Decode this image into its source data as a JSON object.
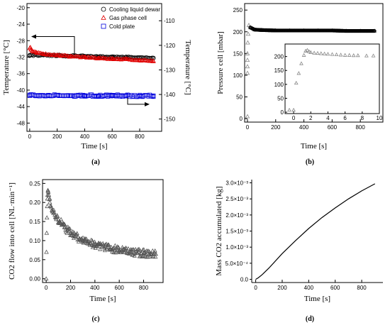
{
  "chart_data": [
    {
      "panel": "a",
      "label": "(a)",
      "type": "scatter",
      "xlabel": "Time [s]",
      "ylabel": "Temperature [°C]",
      "ylabel_right": "Temperature [°C]",
      "xlim": [
        -20,
        960
      ],
      "ylim": [
        -50,
        -19
      ],
      "ylim_right": [
        -155,
        -103
      ],
      "xticks": [
        "0",
        "200",
        "400",
        "600",
        "800"
      ],
      "xtick_values": [
        0,
        200,
        400,
        600,
        800
      ],
      "yticks": [
        "-48",
        "-44",
        "-40",
        "-36",
        "-32",
        "-28",
        "-24",
        "-20"
      ],
      "ytick_values": [
        -48,
        -44,
        -40,
        -36,
        -32,
        -28,
        -24,
        -20
      ],
      "yticks_right": [
        "-150",
        "-140",
        "-130",
        "-120",
        "-110"
      ],
      "ytick_right_values": [
        -150,
        -140,
        -130,
        -120,
        -110
      ],
      "legend": [
        "Cooling liquid dewar",
        "Gas phase cell",
        "Cold plate"
      ],
      "series": [
        {
          "name": "Cooling liquid dewar",
          "axis": "left",
          "marker": "circle",
          "color": "#000000",
          "x": [
            0,
            100,
            200,
            300,
            400,
            500,
            600,
            700,
            800,
            900
          ],
          "y": [
            -31.5,
            -31.5,
            -31.6,
            -31.7,
            -31.8,
            -31.9,
            -32.0,
            -32.0,
            -32.1,
            -32.2
          ]
        },
        {
          "name": "Gas phase cell",
          "axis": "left",
          "marker": "triangle",
          "color": "#e00000",
          "x": [
            0,
            5,
            10,
            20,
            50,
            100,
            200,
            300,
            400,
            500,
            600,
            700,
            800,
            900
          ],
          "y": [
            -29.8,
            -29.6,
            -30.2,
            -30.5,
            -30.9,
            -31.2,
            -31.5,
            -31.8,
            -32.0,
            -32.2,
            -32.4,
            -32.5,
            -32.7,
            -32.9
          ]
        },
        {
          "name": "Cold plate",
          "axis": "right",
          "marker": "square",
          "color": "#0000dd",
          "x": [
            0,
            100,
            200,
            300,
            400,
            500,
            600,
            700,
            800,
            900
          ],
          "y": [
            -140.2,
            -140.4,
            -140.3,
            -140.5,
            -140.4,
            -140.5,
            -140.4,
            -140.5,
            -140.6,
            -140.5
          ]
        }
      ]
    },
    {
      "panel": "b",
      "label": "(b)",
      "type": "scatter",
      "xlabel": "Time [s]",
      "ylabel": "Pressure cell [mbar]",
      "xlim": [
        -20,
        960
      ],
      "ylim": [
        -8,
        265
      ],
      "xticks": [
        "0",
        "200",
        "400",
        "600",
        "800"
      ],
      "xtick_values": [
        0,
        200,
        400,
        600,
        800
      ],
      "yticks": [
        "0",
        "50",
        "100",
        "150",
        "200",
        "250"
      ],
      "ytick_values": [
        0,
        50,
        100,
        150,
        200,
        250
      ],
      "series": [
        {
          "name": "",
          "marker": "triangle",
          "color": "#000000",
          "x": [
            0,
            0,
            0,
            0,
            0,
            2,
            5,
            10,
            20,
            50,
            100,
            200,
            300,
            400,
            500,
            600,
            700,
            800,
            900
          ],
          "y": [
            5,
            105,
            120,
            135,
            150,
            175,
            195,
            215,
            210,
            205,
            204,
            203,
            203,
            203,
            203,
            203,
            202,
            202,
            202
          ]
        }
      ],
      "inset": {
        "xlim": [
          -1,
          10
        ],
        "ylim": [
          -5,
          245
        ],
        "xticks": [
          "0",
          "2",
          "4",
          "6",
          "8",
          "10"
        ],
        "xtick_values": [
          0,
          2,
          4,
          6,
          8,
          10
        ],
        "yticks": [
          "0",
          "50",
          "100",
          "150",
          "200"
        ],
        "ytick_values": [
          0,
          50,
          100,
          150,
          200
        ],
        "x": [
          -0.5,
          0,
          0.3,
          0.6,
          0.9,
          1.2,
          1.4,
          1.6,
          1.8,
          2.0,
          2.4,
          2.8,
          3.2,
          3.6,
          4.0,
          4.5,
          5.0,
          5.5,
          6.0,
          6.5,
          7.0,
          7.5,
          8.5,
          9.3
        ],
        "y": [
          8,
          8,
          105,
          140,
          175,
          205,
          220,
          223,
          218,
          215,
          213,
          212,
          211,
          210,
          209,
          208,
          207,
          206,
          205,
          205,
          204,
          204,
          203,
          203
        ]
      }
    },
    {
      "panel": "c",
      "label": "(c)",
      "type": "scatter",
      "xlabel": "Time [s]",
      "ylabel": "CO2 flow into cell [NL·min⁻¹]",
      "xlim": [
        -30,
        960
      ],
      "ylim": [
        -0.01,
        0.26
      ],
      "xticks": [
        "0",
        "200",
        "400",
        "600",
        "800"
      ],
      "xtick_values": [
        0,
        200,
        400,
        600,
        800
      ],
      "yticks": [
        "0.00",
        "0.05",
        "0.10",
        "0.15",
        "0.20",
        "0.25"
      ],
      "ytick_values": [
        0,
        0.05,
        0.1,
        0.15,
        0.2,
        0.25
      ],
      "series": [
        {
          "name": "",
          "marker": "triangle",
          "color": "#000000",
          "x": [
            0,
            2,
            4,
            6,
            8,
            10,
            15,
            20,
            30,
            50,
            100,
            150,
            200,
            300,
            400,
            500,
            600,
            700,
            800,
            900
          ],
          "y": [
            0.0,
            0.07,
            0.12,
            0.16,
            0.19,
            0.21,
            0.23,
            0.22,
            0.2,
            0.18,
            0.155,
            0.135,
            0.12,
            0.1,
            0.09,
            0.082,
            0.075,
            0.07,
            0.067,
            0.065
          ]
        }
      ]
    },
    {
      "panel": "d",
      "label": "(d)",
      "type": "line",
      "xlabel": "Time [s]",
      "ylabel": "Mass CO2 accumulated [kg]",
      "xlim": [
        -30,
        960
      ],
      "ylim": [
        -0.0001,
        0.0031
      ],
      "xticks": [
        "0",
        "200",
        "400",
        "600",
        "800"
      ],
      "xtick_values": [
        0,
        200,
        400,
        600,
        800
      ],
      "yticks": [
        "0.0",
        "5.0×10⁻⁴",
        "1.0×10⁻³",
        "1.5×10⁻³",
        "2.0×10⁻³",
        "2.5×10⁻³",
        "3.0×10⁻³"
      ],
      "ytick_values": [
        0,
        0.0005,
        0.001,
        0.0015,
        0.002,
        0.0025,
        0.003
      ],
      "series": [
        {
          "name": "",
          "color": "#000000",
          "x": [
            0,
            20,
            50,
            100,
            200,
            300,
            400,
            500,
            600,
            700,
            800,
            900
          ],
          "y": [
            0.0,
            5e-05,
            0.00015,
            0.00035,
            0.0008,
            0.0012,
            0.00158,
            0.00192,
            0.00222,
            0.0025,
            0.00275,
            0.00297
          ]
        }
      ]
    }
  ]
}
